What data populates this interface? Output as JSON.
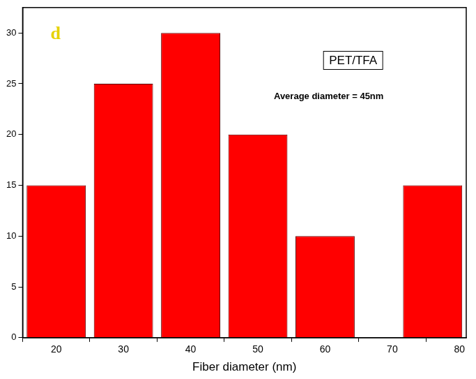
{
  "chart_data": {
    "type": "bar",
    "x_label": "Fiber diameter (nm)",
    "x": [
      20,
      30,
      40,
      50,
      60,
      76
    ],
    "values": [
      15,
      25,
      30,
      20,
      10,
      15
    ],
    "color": "#ff0000",
    "xlim": [
      15,
      81
    ],
    "xticks": [
      20,
      30,
      40,
      50,
      60,
      70,
      80
    ],
    "ylim": [
      0,
      32.5
    ],
    "yticks": [
      0,
      5,
      10,
      15,
      20,
      25,
      30
    ],
    "grid": false,
    "annotations": [
      "d",
      "PET/TFA",
      "Average diameter = 45nm"
    ]
  }
}
